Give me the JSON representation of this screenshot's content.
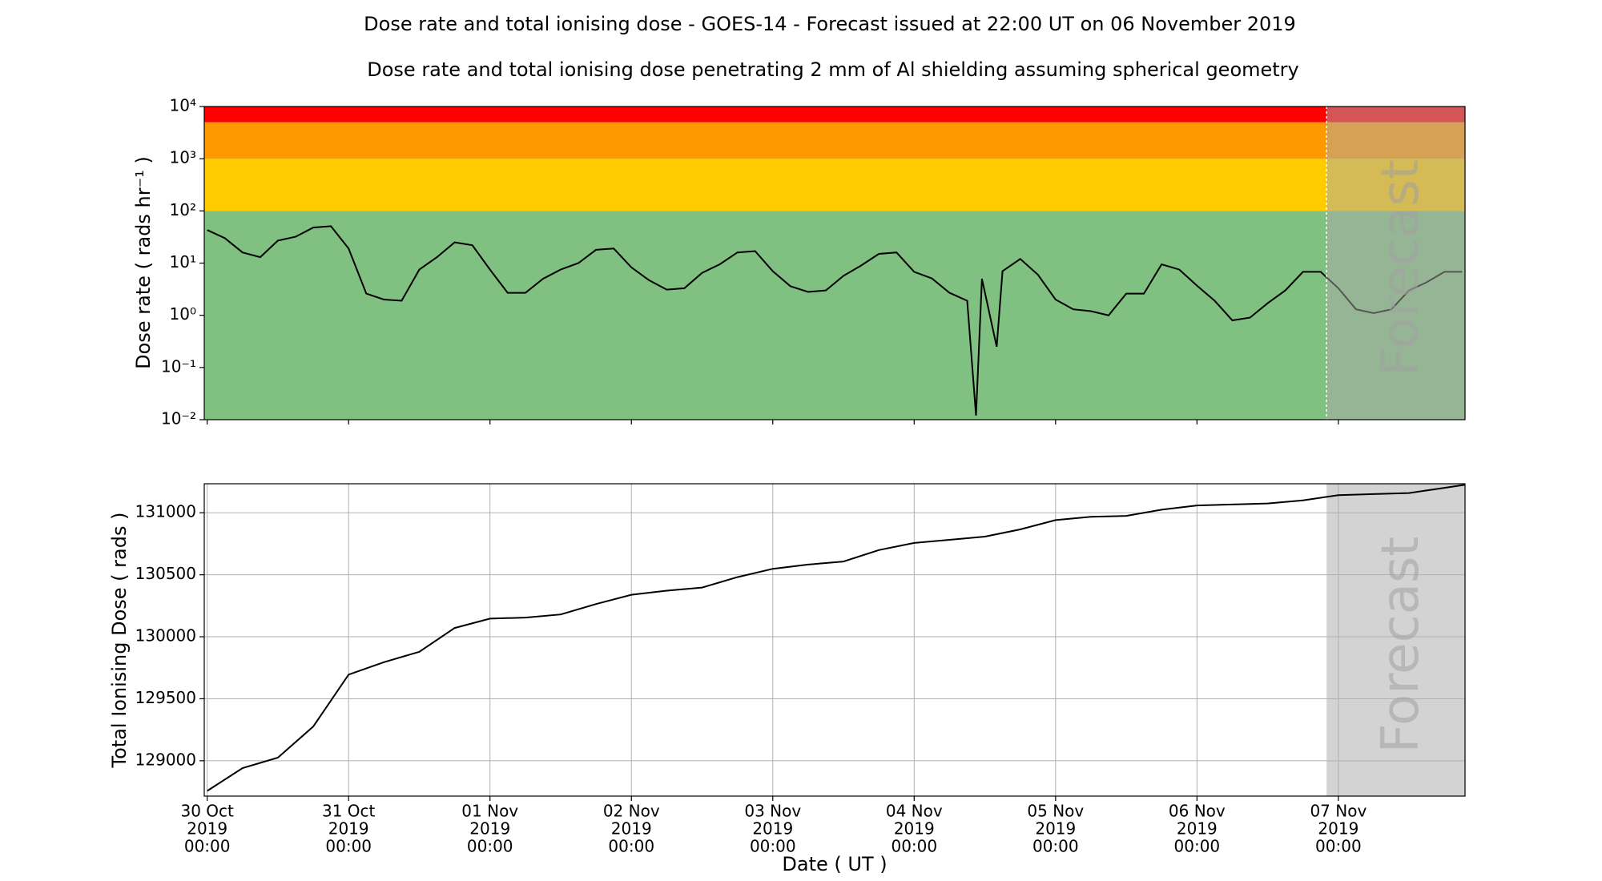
{
  "chart_data": [
    {
      "type": "line",
      "title": "Dose rate and total ionising dose - GOES-14 - Forecast issued at 22:00 UT on 06 November 2019",
      "subtitle": "Dose rate and total ionising dose penetrating 2 mm of Al shielding assuming spherical geometry",
      "ylabel": "Dose rate ( rads hr⁻¹ )",
      "log_y": true,
      "grid": false,
      "color": "#000000",
      "xlim": [
        "2019-10-29T23:30",
        "2019-11-07T21:30"
      ],
      "ylim": [
        0.01,
        10000
      ],
      "yticks": [
        {
          "value": 0.01,
          "label": "10⁻²"
        },
        {
          "value": 0.1,
          "label": "10⁻¹"
        },
        {
          "value": 1,
          "label": "10⁰"
        },
        {
          "value": 10,
          "label": "10¹"
        },
        {
          "value": 100,
          "label": "10²"
        },
        {
          "value": 1000,
          "label": "10³"
        },
        {
          "value": 10000,
          "label": "10⁴"
        }
      ],
      "bands": [
        {
          "from": 0.01,
          "to": 100,
          "color": "#80c080"
        },
        {
          "from": 100,
          "to": 1000,
          "color": "#ffcc00"
        },
        {
          "from": 1000,
          "to": 5000,
          "color": "#ff9900"
        },
        {
          "from": 5000,
          "to": 10000,
          "color": "#ff0000"
        }
      ],
      "forecast_start": "2019-11-06T22:00",
      "forecast_label": "Forecast",
      "forecast_color": "#a9a9a9",
      "x": [
        "2019-10-30T00:00",
        "2019-10-30T03:00",
        "2019-10-30T06:00",
        "2019-10-30T09:00",
        "2019-10-30T12:00",
        "2019-10-30T15:00",
        "2019-10-30T18:00",
        "2019-10-30T21:00",
        "2019-10-31T00:00",
        "2019-10-31T03:00",
        "2019-10-31T06:00",
        "2019-10-31T09:00",
        "2019-10-31T12:00",
        "2019-10-31T15:00",
        "2019-10-31T18:00",
        "2019-10-31T21:00",
        "2019-11-01T00:00",
        "2019-11-01T03:00",
        "2019-11-01T06:00",
        "2019-11-01T09:00",
        "2019-11-01T12:00",
        "2019-11-01T15:00",
        "2019-11-01T18:00",
        "2019-11-01T21:00",
        "2019-11-02T00:00",
        "2019-11-02T03:00",
        "2019-11-02T06:00",
        "2019-11-02T09:00",
        "2019-11-02T12:00",
        "2019-11-02T15:00",
        "2019-11-02T18:00",
        "2019-11-02T21:00",
        "2019-11-03T00:00",
        "2019-11-03T03:00",
        "2019-11-03T06:00",
        "2019-11-03T09:00",
        "2019-11-03T12:00",
        "2019-11-03T15:00",
        "2019-11-03T18:00",
        "2019-11-03T21:00",
        "2019-11-04T00:00",
        "2019-11-04T03:00",
        "2019-11-04T06:00",
        "2019-11-04T09:00",
        "2019-11-04T10:30",
        "2019-11-04T11:30",
        "2019-11-04T14:00",
        "2019-11-04T15:00",
        "2019-11-04T18:00",
        "2019-11-04T21:00",
        "2019-11-05T00:00",
        "2019-11-05T03:00",
        "2019-11-05T06:00",
        "2019-11-05T09:00",
        "2019-11-05T12:00",
        "2019-11-05T15:00",
        "2019-11-05T18:00",
        "2019-11-05T21:00",
        "2019-11-06T00:00",
        "2019-11-06T03:00",
        "2019-11-06T06:00",
        "2019-11-06T09:00",
        "2019-11-06T12:00",
        "2019-11-06T15:00",
        "2019-11-06T18:00",
        "2019-11-06T21:00",
        "2019-11-07T00:00",
        "2019-11-07T03:00",
        "2019-11-07T06:00",
        "2019-11-07T09:00",
        "2019-11-07T12:00",
        "2019-11-07T15:00",
        "2019-11-07T18:00",
        "2019-11-07T21:00"
      ],
      "values": [
        43,
        30,
        16,
        13,
        27,
        32,
        48,
        51,
        19,
        2.6,
        2.0,
        1.9,
        7.5,
        13,
        25,
        22,
        7.5,
        2.7,
        2.7,
        5,
        7.5,
        10,
        18,
        19,
        8.3,
        4.7,
        3.1,
        3.3,
        6.5,
        9.5,
        16,
        17,
        7,
        3.6,
        2.8,
        3.0,
        5.7,
        9,
        15,
        16,
        6.8,
        5.1,
        2.7,
        1.9,
        0.012,
        5,
        0.25,
        7,
        12,
        6,
        2.0,
        1.3,
        1.2,
        1.0,
        2.6,
        2.6,
        9.5,
        7.5,
        3.7,
        1.9,
        0.8,
        0.9,
        1.7,
        3.0,
        6.8,
        6.8,
        3.3,
        1.3,
        1.1,
        1.3,
        3.0,
        4.3,
        6.8,
        6.8
      ]
    },
    {
      "type": "line",
      "ylabel": "Total Ionising Dose ( rads )",
      "xlabel": "Date ( UT )",
      "log_y": false,
      "grid": true,
      "color": "#000000",
      "xlim": [
        "2019-10-29T23:30",
        "2019-11-07T21:30"
      ],
      "ylim": [
        128715,
        131234
      ],
      "yticks": [
        129000,
        129500,
        130000,
        130500,
        131000
      ],
      "xticks": [
        {
          "value": "2019-10-30T00:00",
          "label": [
            "30 Oct",
            "2019",
            "00:00"
          ]
        },
        {
          "value": "2019-10-31T00:00",
          "label": [
            "31 Oct",
            "2019",
            "00:00"
          ]
        },
        {
          "value": "2019-11-01T00:00",
          "label": [
            "01 Nov",
            "2019",
            "00:00"
          ]
        },
        {
          "value": "2019-11-02T00:00",
          "label": [
            "02 Nov",
            "2019",
            "00:00"
          ]
        },
        {
          "value": "2019-11-03T00:00",
          "label": [
            "03 Nov",
            "2019",
            "00:00"
          ]
        },
        {
          "value": "2019-11-04T00:00",
          "label": [
            "04 Nov",
            "2019",
            "00:00"
          ]
        },
        {
          "value": "2019-11-05T00:00",
          "label": [
            "05 Nov",
            "2019",
            "00:00"
          ]
        },
        {
          "value": "2019-11-06T00:00",
          "label": [
            "06 Nov",
            "2019",
            "00:00"
          ]
        },
        {
          "value": "2019-11-07T00:00",
          "label": [
            "07 Nov",
            "2019",
            "00:00"
          ]
        }
      ],
      "forecast_start": "2019-11-06T22:00",
      "forecast_label": "Forecast",
      "forecast_color": "#d3d3d3",
      "x": [
        "2019-10-30T00:00",
        "2019-10-30T06:00",
        "2019-10-30T12:00",
        "2019-10-30T18:00",
        "2019-10-31T00:00",
        "2019-10-31T06:00",
        "2019-10-31T12:00",
        "2019-10-31T18:00",
        "2019-11-01T00:00",
        "2019-11-01T06:00",
        "2019-11-01T12:00",
        "2019-11-01T18:00",
        "2019-11-02T00:00",
        "2019-11-02T06:00",
        "2019-11-02T12:00",
        "2019-11-02T18:00",
        "2019-11-03T00:00",
        "2019-11-03T06:00",
        "2019-11-03T12:00",
        "2019-11-03T18:00",
        "2019-11-04T00:00",
        "2019-11-04T06:00",
        "2019-11-04T12:00",
        "2019-11-04T18:00",
        "2019-11-05T00:00",
        "2019-11-05T06:00",
        "2019-11-05T12:00",
        "2019-11-05T18:00",
        "2019-11-06T00:00",
        "2019-11-06T06:00",
        "2019-11-06T12:00",
        "2019-11-06T18:00",
        "2019-11-07T00:00",
        "2019-11-07T06:00",
        "2019-11-07T12:00",
        "2019-11-07T18:00",
        "2019-11-07T21:30"
      ],
      "values": [
        128757,
        128941,
        129025,
        129276,
        129695,
        129795,
        129879,
        130071,
        130146,
        130155,
        130180,
        130264,
        130339,
        130372,
        130397,
        130481,
        130548,
        130582,
        130607,
        130699,
        130757,
        130782,
        130808,
        130866,
        130941,
        130967,
        130975,
        131025,
        131059,
        131067,
        131075,
        131100,
        131142,
        131151,
        131159,
        131201,
        131226
      ]
    }
  ]
}
